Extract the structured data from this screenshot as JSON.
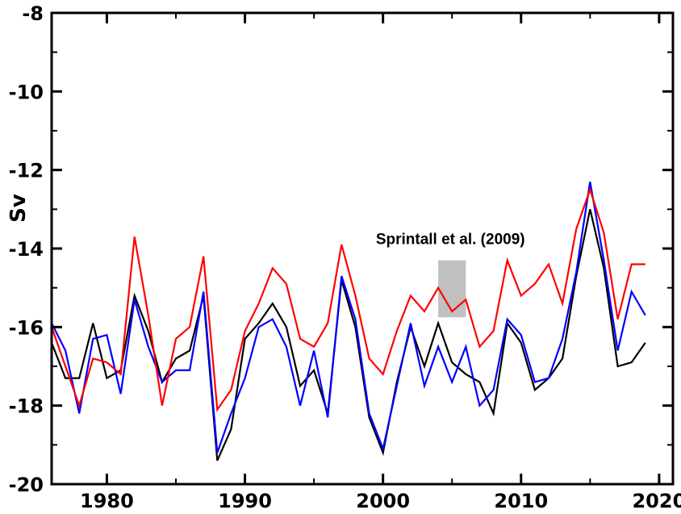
{
  "chart_data": {
    "type": "line",
    "title": "",
    "xlabel": "",
    "ylabel": "Sv",
    "xlim": [
      1976,
      2021
    ],
    "ylim": [
      -20,
      -8
    ],
    "xticks": [
      1980,
      1990,
      2000,
      2010,
      2020
    ],
    "yticks": [
      -20,
      -18,
      -16,
      -14,
      -12,
      -10,
      -8
    ],
    "grid": false,
    "legend": "none",
    "x": [
      1976,
      1977,
      1978,
      1979,
      1980,
      1981,
      1982,
      1983,
      1984,
      1985,
      1986,
      1987,
      1988,
      1989,
      1990,
      1991,
      1992,
      1993,
      1994,
      1995,
      1996,
      1997,
      1998,
      1999,
      2000,
      2001,
      2002,
      2003,
      2004,
      2005,
      2006,
      2007,
      2008,
      2009,
      2010,
      2011,
      2012,
      2013,
      2014,
      2015,
      2016,
      2017,
      2018,
      2019
    ],
    "series": [
      {
        "color": "#000000",
        "values": [
          -16.4,
          -17.3,
          -17.3,
          -15.9,
          -17.3,
          -17.1,
          -15.2,
          -16.1,
          -17.4,
          -16.8,
          -16.6,
          -15.2,
          -19.4,
          -18.6,
          -16.3,
          -15.9,
          -15.4,
          -16.0,
          -17.5,
          -17.1,
          -18.2,
          -14.8,
          -16.0,
          -18.3,
          -19.2,
          -17.4,
          -16.0,
          -17.0,
          -15.9,
          -16.9,
          -17.2,
          -17.4,
          -18.2,
          -15.9,
          -16.4,
          -17.6,
          -17.3,
          -16.8,
          -14.7,
          -13.0,
          -14.5,
          -17.0,
          -16.9,
          -16.4
        ]
      },
      {
        "color": "#0000ff",
        "values": [
          -15.9,
          -16.6,
          -18.2,
          -16.3,
          -16.2,
          -17.7,
          -15.3,
          -16.5,
          -17.4,
          -17.1,
          -17.1,
          -15.1,
          -19.2,
          -18.2,
          -17.3,
          -16.0,
          -15.8,
          -16.5,
          -18.0,
          -16.6,
          -18.3,
          -14.7,
          -15.8,
          -18.2,
          -19.1,
          -17.5,
          -15.9,
          -17.5,
          -16.5,
          -17.4,
          -16.5,
          -18.0,
          -17.6,
          -15.8,
          -16.2,
          -17.4,
          -17.3,
          -16.3,
          -14.6,
          -12.3,
          -14.3,
          -16.6,
          -15.1,
          -15.7
        ]
      },
      {
        "color": "#ff0000",
        "values": [
          -16.0,
          -17.0,
          -18.0,
          -16.8,
          -16.9,
          -17.2,
          -13.7,
          -15.7,
          -18.0,
          -16.3,
          -16.0,
          -14.2,
          -18.1,
          -17.6,
          -16.1,
          -15.4,
          -14.5,
          -14.9,
          -16.3,
          -16.5,
          -15.9,
          -13.9,
          -15.2,
          -16.8,
          -17.2,
          -16.1,
          -15.2,
          -15.6,
          -15.0,
          -15.6,
          -15.3,
          -16.5,
          -16.1,
          -14.3,
          -15.2,
          -14.9,
          -14.4,
          -15.4,
          -13.5,
          -12.5,
          -13.6,
          -15.8,
          -14.4,
          -14.4
        ]
      }
    ],
    "annotation": {
      "text": "Sprintall et al. (2009)",
      "x_range": [
        2004,
        2006
      ],
      "y_range": [
        -15.75,
        -14.3
      ],
      "color": "#c0c0c0"
    }
  }
}
